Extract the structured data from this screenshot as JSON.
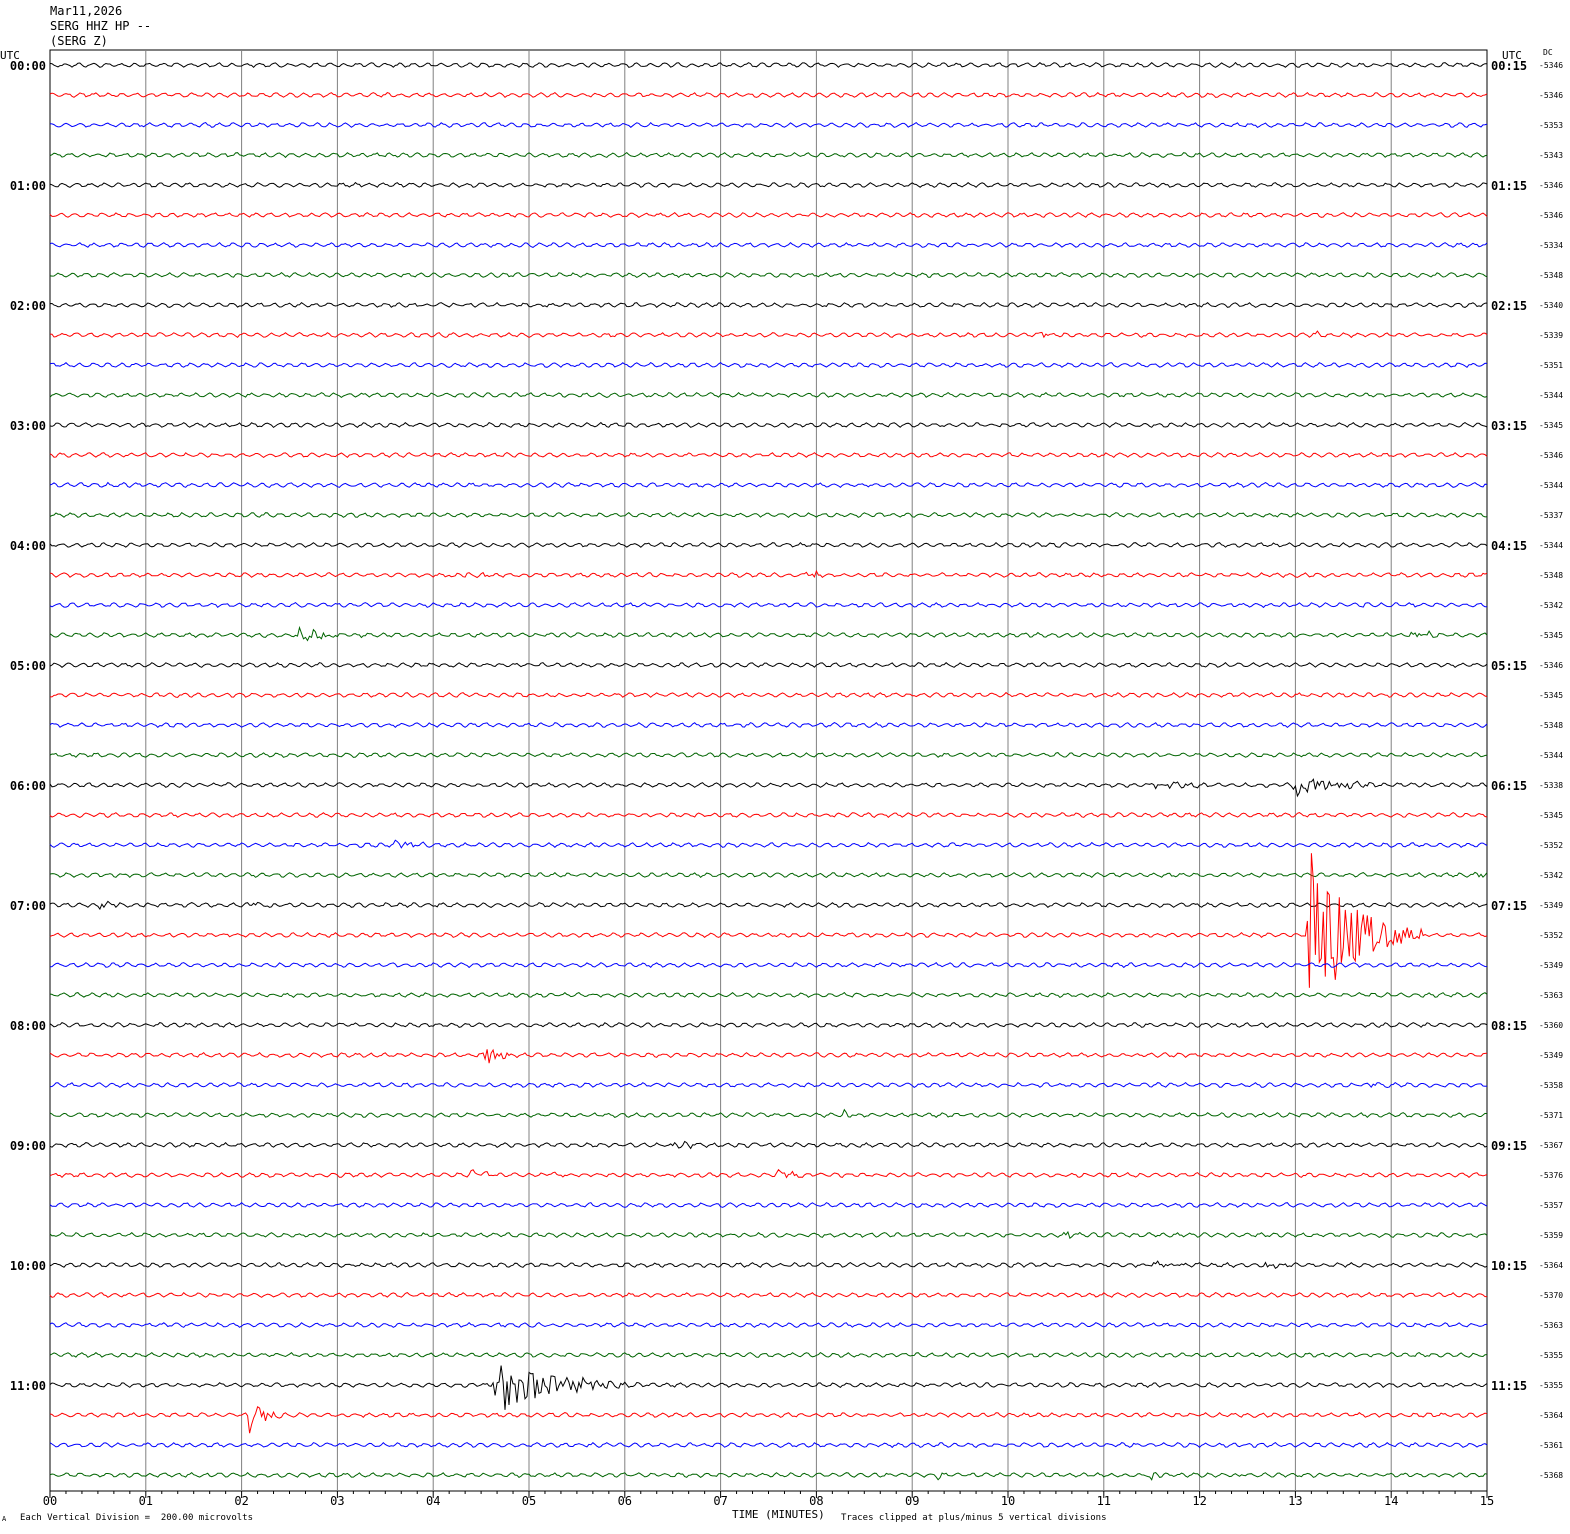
{
  "header": {
    "date": "Mar11,2026",
    "channel": "SERG HHZ HP --",
    "station": "(SERG Z)"
  },
  "axis": {
    "left_unit": "UTC",
    "right_unit": "UTC",
    "dc_label": "DC",
    "xlabel": "TIME (MINUTES)",
    "x_ticks": [
      "00",
      "01",
      "02",
      "03",
      "04",
      "05",
      "06",
      "07",
      "08",
      "09",
      "10",
      "11",
      "12",
      "13",
      "14",
      "15"
    ]
  },
  "footer": {
    "scale_note": "Each Vertical Division =  200.00 microvolts",
    "clip_note": "Traces clipped at plus/minus 5 vertical divisions",
    "corner_mark": "A"
  },
  "colors": {
    "cycle": [
      "#000000",
      "#ff0000",
      "#0000ff",
      "#006400"
    ],
    "grid": "#808080"
  },
  "chart_data": {
    "type": "line",
    "title": "",
    "x_range_minutes": [
      0,
      15
    ],
    "rows_per_hour": 4,
    "minutes_per_row": 15,
    "row_count": 48,
    "left_hour_labels": [
      "00:00",
      "01:00",
      "02:00",
      "03:00",
      "04:00",
      "05:00",
      "06:00",
      "07:00",
      "08:00",
      "09:00",
      "10:00",
      "11:00"
    ],
    "right_hour_labels": [
      "00:15",
      "01:15",
      "02:15",
      "03:15",
      "04:15",
      "05:15",
      "06:15",
      "07:15",
      "08:15",
      "09:15",
      "10:15",
      "11:15"
    ],
    "dc_offsets": [
      "-5346",
      "-5346",
      "-5353",
      "-5343",
      "-5346",
      "-5346",
      "-5334",
      "-5348",
      "-5340",
      "-5339",
      "-5351",
      "-5344",
      "-5345",
      "-5346",
      "-5344",
      "-5337",
      "-5344",
      "-5348",
      "-5342",
      "-5345",
      "-5346",
      "-5345",
      "-5348",
      "-5344",
      "-5338",
      "-5345",
      "-5352",
      "-5342",
      "-5349",
      "-5352",
      "-5349",
      "-5363",
      "-5360",
      "-5349",
      "-5358",
      "-5371",
      "-5367",
      "-5376",
      "-5357",
      "-5359",
      "-5364",
      "-5370",
      "-5363",
      "-5355",
      "-5355",
      "-5364",
      "-5361",
      "-5368"
    ],
    "events": [
      {
        "row": 9,
        "minute": 10.35,
        "amp": 5,
        "dur": 0.15
      },
      {
        "row": 9,
        "minute": 13.2,
        "amp": 3,
        "dur": 0.15
      },
      {
        "row": 14,
        "minute": 0.6,
        "amp": 2,
        "dur": 0.3
      },
      {
        "row": 17,
        "minute": 4.2,
        "amp": 4,
        "dur": 0.8
      },
      {
        "row": 17,
        "minute": 7.9,
        "amp": 7,
        "dur": 0.4
      },
      {
        "row": 18,
        "minute": 13.7,
        "amp": 2,
        "dur": 0.4
      },
      {
        "row": 19,
        "minute": 2.6,
        "amp": 6,
        "dur": 0.8
      },
      {
        "row": 19,
        "minute": 14.2,
        "amp": 4,
        "dur": 0.8
      },
      {
        "row": 24,
        "minute": 11.5,
        "amp": 3,
        "dur": 1.2
      },
      {
        "row": 24,
        "minute": 13.0,
        "amp": 13,
        "dur": 1.0
      },
      {
        "row": 26,
        "minute": 3.6,
        "amp": 4,
        "dur": 0.8
      },
      {
        "row": 27,
        "minute": 14.9,
        "amp": 5,
        "dur": 0.2
      },
      {
        "row": 28,
        "minute": 0.5,
        "amp": 4,
        "dur": 0.6
      },
      {
        "row": 28,
        "minute": 2.1,
        "amp": 4,
        "dur": 0.6
      },
      {
        "row": 29,
        "minute": 13.15,
        "amp": 95,
        "dur": 1.2
      },
      {
        "row": 33,
        "minute": 4.52,
        "amp": 16,
        "dur": 0.4
      },
      {
        "row": 34,
        "minute": 13.8,
        "amp": 4,
        "dur": 0.4
      },
      {
        "row": 35,
        "minute": 8.3,
        "amp": 6,
        "dur": 0.15
      },
      {
        "row": 36,
        "minute": 6.5,
        "amp": 3,
        "dur": 0.8
      },
      {
        "row": 37,
        "minute": 4.4,
        "amp": 4,
        "dur": 0.6
      },
      {
        "row": 37,
        "minute": 5.2,
        "amp": 4,
        "dur": 0.3
      },
      {
        "row": 37,
        "minute": 7.6,
        "amp": 4,
        "dur": 0.8
      },
      {
        "row": 39,
        "minute": 10.6,
        "amp": 3,
        "dur": 0.4
      },
      {
        "row": 40,
        "minute": 11.5,
        "amp": 3,
        "dur": 1.0
      },
      {
        "row": 40,
        "minute": 12.7,
        "amp": 5,
        "dur": 0.4
      },
      {
        "row": 44,
        "minute": 4.65,
        "amp": 30,
        "dur": 1.6
      },
      {
        "row": 45,
        "minute": 2.08,
        "amp": 28,
        "dur": 0.35
      },
      {
        "row": 47,
        "minute": 9.25,
        "amp": 9,
        "dur": 0.12
      },
      {
        "row": 47,
        "minute": 11.5,
        "amp": 6,
        "dur": 0.2
      },
      {
        "row": 47,
        "minute": 12.4,
        "amp": 6,
        "dur": 0.2
      }
    ]
  }
}
